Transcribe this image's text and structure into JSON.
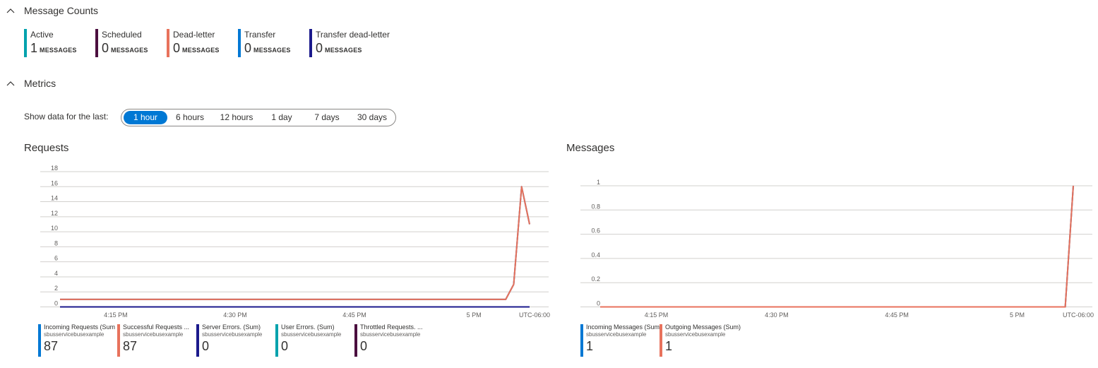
{
  "sections": {
    "message_counts": "Message Counts",
    "metrics": "Metrics"
  },
  "counts": [
    {
      "label": "Active",
      "value": "1",
      "unit": "MESSAGES",
      "color": "#00a2ad"
    },
    {
      "label": "Scheduled",
      "value": "0",
      "unit": "MESSAGES",
      "color": "#4b0f3f"
    },
    {
      "label": "Dead-letter",
      "value": "0",
      "unit": "MESSAGES",
      "color": "#e8725c"
    },
    {
      "label": "Transfer",
      "value": "0",
      "unit": "MESSAGES",
      "color": "#0078d4"
    },
    {
      "label": "Transfer dead-letter",
      "value": "0",
      "unit": "MESSAGES",
      "color": "#1b1a8c"
    }
  ],
  "time_range": {
    "label": "Show data for the last:",
    "options": [
      "1 hour",
      "6 hours",
      "12 hours",
      "1 day",
      "7 days",
      "30 days"
    ],
    "selected": "1 hour"
  },
  "chart_data": [
    {
      "type": "line",
      "title": "Requests",
      "x": [
        "4:08",
        "4:10",
        "4:15",
        "4:20",
        "4:25",
        "4:30",
        "4:35",
        "4:40",
        "4:45",
        "4:50",
        "4:55",
        "5:00",
        "5:04",
        "5:05",
        "5:06",
        "5:07"
      ],
      "x_ticks": [
        "4:15 PM",
        "4:30 PM",
        "4:45 PM",
        "5 PM",
        "UTC-06:00"
      ],
      "ylim": [
        0,
        18
      ],
      "y_ticks": [
        "0",
        "2",
        "4",
        "6",
        "8",
        "10",
        "12",
        "14",
        "16",
        "18"
      ],
      "grid": true,
      "series": [
        {
          "name": "Incoming Requests (Sum)",
          "resource": "sbusservicebusexample",
          "total": "87",
          "color": "#0078d4",
          "values": [
            1,
            1,
            1,
            1,
            1,
            1,
            1,
            1,
            1,
            1,
            1,
            1,
            1,
            3,
            16,
            11
          ]
        },
        {
          "name": "Successful Requests (Sum)",
          "resource": "sbusservicebusexample",
          "total": "87",
          "color": "#e8725c",
          "values": [
            1,
            1,
            1,
            1,
            1,
            1,
            1,
            1,
            1,
            1,
            1,
            1,
            1,
            3,
            16,
            11
          ]
        },
        {
          "name": "Server Errors. (Sum)",
          "resource": "sbusservicebusexample",
          "total": "0",
          "color": "#1b1a8c",
          "values": [
            0,
            0,
            0,
            0,
            0,
            0,
            0,
            0,
            0,
            0,
            0,
            0,
            0,
            0,
            0,
            0
          ]
        },
        {
          "name": "User Errors. (Sum)",
          "resource": "sbusservicebusexample",
          "total": "0",
          "color": "#00a2ad",
          "values": [
            0,
            0,
            0,
            0,
            0,
            0,
            0,
            0,
            0,
            0,
            0,
            0,
            0,
            0,
            0,
            0
          ]
        },
        {
          "name": "Throttled Requests. (Sum)",
          "resource": "sbusservicebusexample",
          "total": "0",
          "color": "#4b0f3f",
          "values": [
            0,
            0,
            0,
            0,
            0,
            0,
            0,
            0,
            0,
            0,
            0,
            0,
            0,
            0,
            0,
            0
          ]
        }
      ],
      "legend_labels": [
        "Incoming Requests (Sum",
        "Successful Requests ...",
        "Server Errors. (Sum)",
        "User Errors. (Sum)",
        "Throttled Requests. ..."
      ]
    },
    {
      "type": "line",
      "title": "Messages",
      "x": [
        "4:08",
        "4:15",
        "4:30",
        "4:45",
        "5:00",
        "5:06",
        "5:07"
      ],
      "x_ticks": [
        "4:15 PM",
        "4:30 PM",
        "4:45 PM",
        "5 PM",
        "UTC-06:00"
      ],
      "ylim": [
        0,
        1
      ],
      "y_ticks": [
        "0",
        "0.2",
        "0.4",
        "0.6",
        "0.8",
        "1"
      ],
      "grid": true,
      "series": [
        {
          "name": "Incoming Messages (Sum)",
          "resource": "sbusservicebusexample",
          "total": "1",
          "color": "#0078d4",
          "values": [
            0,
            0,
            0,
            0,
            0,
            0,
            1
          ]
        },
        {
          "name": "Outgoing Messages (Sum)",
          "resource": "sbusservicebusexample",
          "total": "1",
          "color": "#e8725c",
          "values": [
            0,
            0,
            0,
            0,
            0,
            0,
            1
          ]
        }
      ],
      "legend_labels": [
        "Incoming Messages (Sum",
        "Outgoing Messages (Sum)"
      ]
    }
  ]
}
